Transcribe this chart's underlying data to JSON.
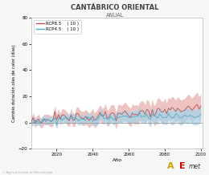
{
  "title": "CANTÁBRICO ORIENTAL",
  "subtitle": "ANUAL",
  "xlabel": "Año",
  "ylabel": "Cambio duración olas de calor (días)",
  "xlim": [
    2006,
    2101
  ],
  "ylim": [
    -20,
    80
  ],
  "yticks": [
    -20,
    0,
    20,
    40,
    60,
    80
  ],
  "xticks": [
    2020,
    2040,
    2060,
    2080,
    2100
  ],
  "rcp85_color": "#c0504d",
  "rcp45_color": "#4bacc6",
  "rcp85_fill": "#e8b0ae",
  "rcp45_fill": "#aad4e8",
  "legend_n": [
    "( 10 )",
    "( 10 )"
  ],
  "bg_color": "#f7f7f5",
  "plot_bg": "#ffffff",
  "zero_line_color": "#999999",
  "seed": 12
}
